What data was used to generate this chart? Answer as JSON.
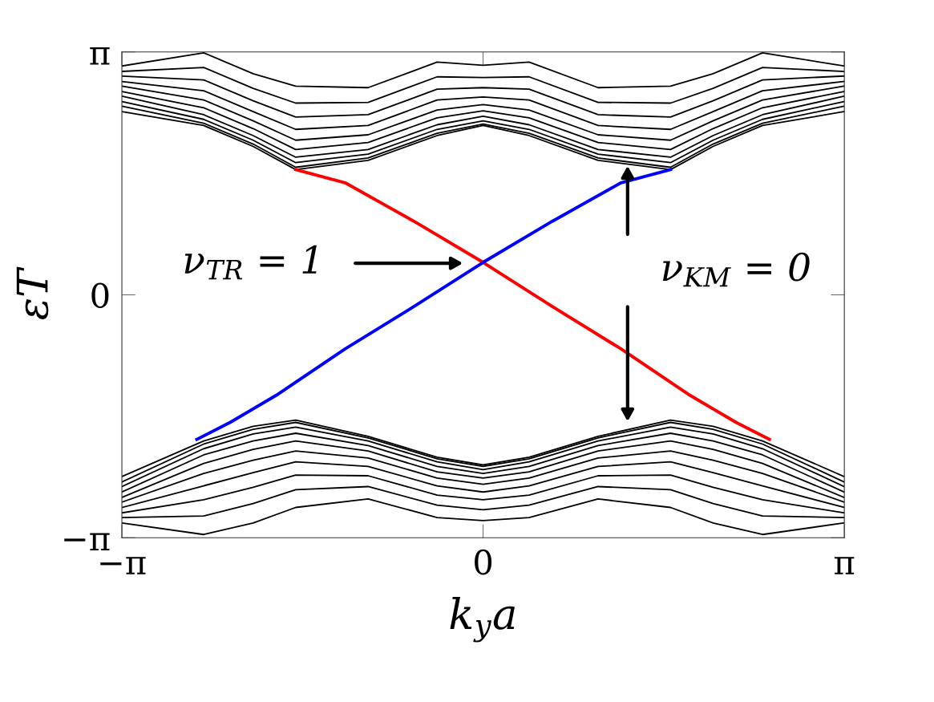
{
  "chart_data": {
    "type": "line",
    "xlabel": "k$_{y}$a",
    "ylabel": "εT",
    "x": [
      -3.14,
      -2.43,
      -2.0,
      -1.63,
      -1.0,
      -0.4,
      0,
      0.4,
      1.0,
      1.63,
      2.0,
      2.43,
      3.14
    ],
    "series": [
      {
        "color": "#000000",
        "values": [
          2.37,
          2.19,
          1.92,
          1.62,
          1.74,
          2.06,
          2.19,
          2.06,
          1.74,
          1.62,
          1.92,
          2.19,
          2.37
        ]
      },
      {
        "color": "#000000",
        "values": [
          2.44,
          2.22,
          1.95,
          1.65,
          1.77,
          2.09,
          2.21,
          2.09,
          1.77,
          1.65,
          1.95,
          2.22,
          2.44
        ]
      },
      {
        "color": "#000000",
        "values": [
          2.5,
          2.27,
          2.0,
          1.71,
          1.82,
          2.14,
          2.25,
          2.14,
          1.82,
          1.71,
          2.0,
          2.27,
          2.5
        ]
      },
      {
        "color": "#000000",
        "values": [
          2.57,
          2.33,
          2.06,
          1.78,
          1.88,
          2.2,
          2.31,
          2.2,
          1.88,
          1.78,
          2.06,
          2.33,
          2.57
        ]
      },
      {
        "color": "#000000",
        "values": [
          2.63,
          2.42,
          2.15,
          1.88,
          1.97,
          2.29,
          2.38,
          2.29,
          1.97,
          1.88,
          2.15,
          2.42,
          2.63
        ]
      },
      {
        "color": "#000000",
        "values": [
          2.7,
          2.52,
          2.25,
          2.0,
          2.07,
          2.39,
          2.46,
          2.39,
          2.07,
          2.0,
          2.25,
          2.52,
          2.7
        ]
      },
      {
        "color": "#000000",
        "values": [
          2.76,
          2.64,
          2.37,
          2.14,
          2.19,
          2.52,
          2.56,
          2.52,
          2.19,
          2.14,
          2.37,
          2.64,
          2.76
        ]
      },
      {
        "color": "#000000",
        "values": [
          2.83,
          2.78,
          2.51,
          2.3,
          2.33,
          2.66,
          2.68,
          2.66,
          2.33,
          2.3,
          2.51,
          2.78,
          2.83
        ]
      },
      {
        "color": "#000000",
        "values": [
          2.89,
          2.94,
          2.67,
          2.48,
          2.49,
          2.82,
          2.81,
          2.82,
          2.49,
          2.48,
          2.67,
          2.94,
          2.89
        ]
      },
      {
        "color": "#000000",
        "values": [
          2.96,
          3.13,
          2.86,
          2.7,
          2.68,
          3.01,
          2.97,
          3.01,
          2.68,
          2.7,
          2.86,
          3.13,
          2.96
        ]
      },
      {
        "color": "#000000",
        "values": [
          -2.95,
          -3.1,
          -2.95,
          -2.75,
          -2.64,
          -2.88,
          -2.92,
          -2.88,
          -2.64,
          -2.75,
          -2.95,
          -3.1,
          -2.95
        ]
      },
      {
        "color": "#000000",
        "values": [
          -2.88,
          -2.86,
          -2.7,
          -2.52,
          -2.48,
          -2.72,
          -2.78,
          -2.72,
          -2.48,
          -2.52,
          -2.7,
          -2.86,
          -2.88
        ]
      },
      {
        "color": "#000000",
        "values": [
          -2.82,
          -2.65,
          -2.49,
          -2.33,
          -2.34,
          -2.59,
          -2.65,
          -2.59,
          -2.34,
          -2.33,
          -2.49,
          -2.65,
          -2.82
        ]
      },
      {
        "color": "#000000",
        "values": [
          -2.75,
          -2.47,
          -2.3,
          -2.16,
          -2.22,
          -2.47,
          -2.55,
          -2.47,
          -2.22,
          -2.16,
          -2.3,
          -2.47,
          -2.75
        ]
      },
      {
        "color": "#000000",
        "values": [
          -2.68,
          -2.31,
          -2.14,
          -2.02,
          -2.11,
          -2.37,
          -2.45,
          -2.37,
          -2.11,
          -2.02,
          -2.14,
          -2.31,
          -2.68
        ]
      },
      {
        "color": "#000000",
        "values": [
          -2.62,
          -2.18,
          -2.0,
          -1.89,
          -2.02,
          -2.29,
          -2.37,
          -2.29,
          -2.02,
          -1.89,
          -2.0,
          -2.18,
          -2.62
        ]
      },
      {
        "color": "#000000",
        "values": [
          -2.55,
          -2.07,
          -1.89,
          -1.79,
          -1.95,
          -2.22,
          -2.31,
          -2.22,
          -1.95,
          -1.79,
          -1.89,
          -2.07,
          -2.55
        ]
      },
      {
        "color": "#000000",
        "values": [
          -2.48,
          -1.99,
          -1.8,
          -1.71,
          -1.89,
          -2.16,
          -2.26,
          -2.16,
          -1.89,
          -1.71,
          -1.8,
          -1.99,
          -2.48
        ]
      },
      {
        "color": "#000000",
        "values": [
          -2.42,
          -1.93,
          -1.74,
          -1.65,
          -1.85,
          -2.12,
          -2.22,
          -2.12,
          -1.85,
          -1.65,
          -1.74,
          -1.93,
          -2.42
        ]
      },
      {
        "color": "#000000",
        "values": [
          -2.35,
          -1.89,
          -1.7,
          -1.62,
          -1.83,
          -2.1,
          -2.2,
          -2.1,
          -1.83,
          -1.62,
          -1.7,
          -1.89,
          -2.35
        ]
      },
      {
        "color": "#ff0000",
        "x": [
          -1.63,
          -1.2,
          -0.6,
          0,
          0.6,
          1.2,
          1.8,
          2.2,
          2.49
        ],
        "values": [
          1.62,
          1.45,
          0.95,
          0.42,
          -0.15,
          -0.7,
          -1.3,
          -1.65,
          -1.87
        ]
      },
      {
        "color": "#0000ff",
        "x": [
          -2.49,
          -2.2,
          -1.8,
          -1.2,
          -0.6,
          0,
          0.6,
          1.2,
          1.63
        ],
        "values": [
          -1.87,
          -1.65,
          -1.3,
          -0.7,
          -0.15,
          0.42,
          0.95,
          1.45,
          1.62
        ]
      }
    ],
    "xlim": [
      -3.14159,
      3.14159
    ],
    "ylim": [
      -3.14159,
      3.14159
    ],
    "xticks": [
      {
        "value": -3.14159,
        "label": "−π"
      },
      0,
      {
        "value": 3.14159,
        "label": "π"
      }
    ],
    "yticks": [
      {
        "value": -3.14159,
        "label": "−π"
      },
      0,
      {
        "value": 3.14159,
        "label": "π"
      }
    ],
    "annotations": [
      "ν$_{TR}$ = 1",
      "ν$_{KM}$ = 0"
    ],
    "grid": false,
    "legend": false,
    "marker": "none",
    "line_style": "solid"
  }
}
